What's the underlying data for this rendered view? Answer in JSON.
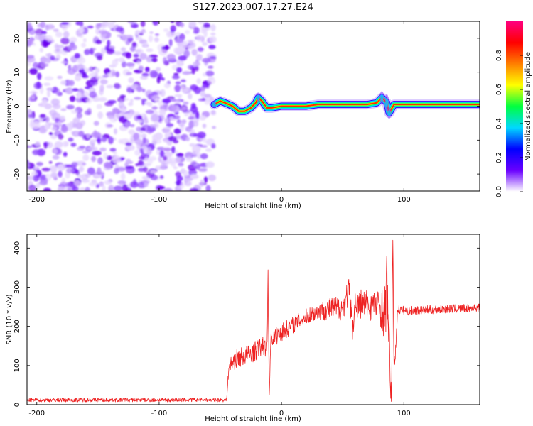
{
  "title": "S127.2023.007.17.27.E24",
  "chart_data": [
    {
      "type": "heatmap",
      "name": "spectrogram",
      "xlabel": "Height of straight line (km)",
      "ylabel": "Frequency (Hz)",
      "xlim": [
        -208,
        162
      ],
      "ylim": [
        -25,
        25
      ],
      "xticks": [
        -200,
        -100,
        0,
        100
      ],
      "xtick_labels": [
        "-200",
        "-100",
        "0",
        "100"
      ],
      "yticks": [
        -20,
        -10,
        0,
        10,
        20
      ],
      "ytick_labels": [
        "-20",
        "-10",
        "0",
        "10",
        "20"
      ],
      "noise_region_x": [
        -208,
        -55
      ],
      "signal_track": {
        "x": [
          -55,
          -50,
          -45,
          -40,
          -35,
          -30,
          -25,
          -21,
          -19,
          -16,
          -12,
          -8,
          0,
          10,
          20,
          30,
          40,
          50,
          60,
          70,
          78,
          82,
          86,
          88,
          92,
          100,
          120,
          140,
          162
        ],
        "freq": [
          0.5,
          1.5,
          0.8,
          0.0,
          -1.5,
          -1.5,
          -0.5,
          1.0,
          2.5,
          1.5,
          -0.5,
          -0.5,
          0.0,
          0.0,
          0.0,
          0.5,
          0.5,
          0.5,
          0.5,
          0.5,
          1.0,
          2.5,
          1.0,
          -2.0,
          0.5,
          0.5,
          0.5,
          0.5,
          0.5
        ]
      },
      "colorbar": {
        "label": "Normalized spectral amplitude",
        "range": [
          0,
          1
        ],
        "ticks": [
          0.0,
          0.2,
          0.4,
          0.6,
          0.8
        ],
        "tick_labels": [
          "0.0",
          "0.2",
          "0.4",
          "0.6",
          "0.8"
        ],
        "colors": [
          "#ffffff",
          "#6a00ff",
          "#0000ff",
          "#00d8ff",
          "#00ff40",
          "#ffff00",
          "#ff7f00",
          "#ff0000",
          "#ff0080"
        ]
      }
    },
    {
      "type": "line",
      "name": "snr",
      "xlabel": "Height of straight line (km)",
      "ylabel": "SNR (10 * v/v)",
      "xlim": [
        -208,
        162
      ],
      "ylim": [
        0,
        435
      ],
      "xticks": [
        -200,
        -100,
        0,
        100
      ],
      "xtick_labels": [
        "-200",
        "-100",
        "0",
        "100"
      ],
      "yticks": [
        0,
        100,
        200,
        300,
        400
      ],
      "ytick_labels": [
        "0",
        "100",
        "200",
        "300",
        "400"
      ],
      "color": "#ee2222",
      "series": {
        "x": [
          -208,
          -150,
          -100,
          -60,
          -45,
          -43,
          -40,
          -35,
          -30,
          -25,
          -20,
          -15,
          -12,
          -11,
          -10,
          -9,
          -8,
          -5,
          0,
          5,
          10,
          15,
          20,
          25,
          30,
          40,
          50,
          55,
          58,
          60,
          65,
          70,
          75,
          80,
          85,
          86,
          88,
          90,
          91,
          92,
          95,
          100,
          110,
          120,
          130,
          140,
          150,
          162
        ],
        "snr": [
          12,
          12,
          12,
          12,
          12,
          95,
          110,
          120,
          125,
          130,
          140,
          150,
          140,
          320,
          20,
          160,
          170,
          175,
          185,
          195,
          205,
          215,
          225,
          232,
          238,
          245,
          248,
          290,
          200,
          250,
          258,
          255,
          255,
          252,
          230,
          330,
          150,
          10,
          425,
          80,
          245,
          240,
          240,
          242,
          244,
          245,
          246,
          248
        ]
      },
      "noise_amp": {
        "x": [
          -208,
          -45,
          -40,
          -10,
          20,
          40,
          60,
          80,
          85,
          95,
          162
        ],
        "amp": [
          5,
          5,
          25,
          25,
          20,
          28,
          40,
          40,
          80,
          12,
          10
        ]
      }
    }
  ]
}
